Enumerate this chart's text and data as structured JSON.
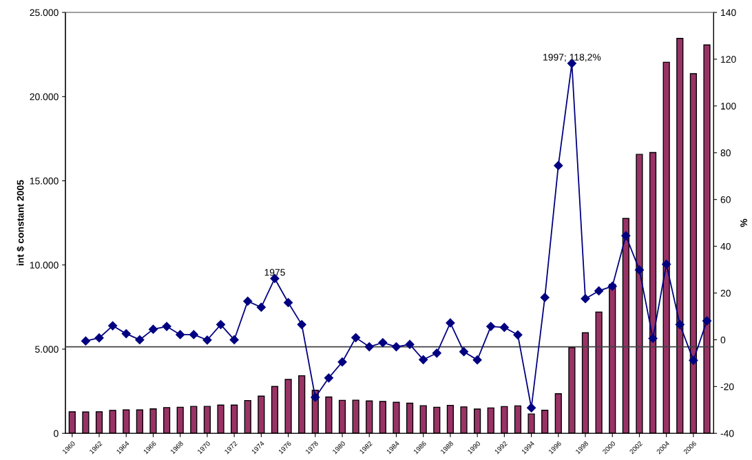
{
  "chart_data": {
    "type": "bar",
    "x": [
      1960,
      1961,
      1962,
      1963,
      1964,
      1965,
      1966,
      1967,
      1968,
      1969,
      1970,
      1971,
      1972,
      1973,
      1974,
      1975,
      1976,
      1977,
      1978,
      1979,
      1980,
      1981,
      1982,
      1983,
      1984,
      1985,
      1986,
      1987,
      1988,
      1989,
      1990,
      1991,
      1992,
      1993,
      1994,
      1995,
      1996,
      1997,
      1998,
      1999,
      2000,
      2001,
      2002,
      2003,
      2004,
      2005,
      2006,
      2007
    ],
    "xlim": [
      1959.5,
      2007.5
    ],
    "xticks": [
      1960,
      1962,
      1964,
      1966,
      1968,
      1970,
      1972,
      1974,
      1976,
      1978,
      1980,
      1982,
      1984,
      1986,
      1988,
      1990,
      1992,
      1994,
      1996,
      1998,
      2000,
      2002,
      2004,
      2006
    ],
    "series": [
      {
        "color": "#993366",
        "values": [
          1280,
          1270,
          1280,
          1360,
          1390,
          1390,
          1450,
          1530,
          1550,
          1600,
          1600,
          1680,
          1680,
          1950,
          2210,
          2780,
          3200,
          3420,
          2560,
          2160,
          1960,
          1970,
          1920,
          1890,
          1840,
          1790,
          1640,
          1550,
          1660,
          1570,
          1440,
          1510,
          1590,
          1630,
          1150,
          1370,
          2350,
          5090,
          5970,
          7200,
          8850,
          12760,
          16570,
          16680,
          22040,
          23460,
          21360,
          23070
        ]
      },
      {
        "type": "line",
        "axis": "y2",
        "color": "#000080",
        "marker": "diamond",
        "line_style": "solid",
        "values": [
          null,
          -0.5,
          0.8,
          6.0,
          2.6,
          0,
          4.5,
          5.7,
          2.2,
          2.2,
          -0.1,
          6.5,
          0,
          16.5,
          13.9,
          26.2,
          15.9,
          6.5,
          -24.6,
          -16.3,
          -9.5,
          0.9,
          -3.0,
          -1.2,
          -3.0,
          -2.0,
          -8.5,
          -5.7,
          7.2,
          -5.1,
          -8.6,
          5.7,
          5.3,
          2.1,
          -29.1,
          18.1,
          74.5,
          118.2,
          17.6,
          20.9,
          22.9,
          44.5,
          29.9,
          0.6,
          32.3,
          6.5,
          -8.8,
          8.1
        ]
      }
    ],
    "ylabel": "int $ constant 2005",
    "y2label": "%",
    "ylim": [
      0,
      25000
    ],
    "yticks": [
      {
        "value": 0,
        "label": "0"
      },
      {
        "value": 5000,
        "label": "5.000"
      },
      {
        "value": 10000,
        "label": "10.000"
      },
      {
        "value": 15000,
        "label": "15.000"
      },
      {
        "value": 20000,
        "label": "20.000"
      },
      {
        "value": 25000,
        "label": "25.000"
      }
    ],
    "y2lim": [
      -40,
      140
    ],
    "y2ticks": [
      -40,
      -20,
      0,
      20,
      40,
      60,
      80,
      100,
      120,
      140
    ],
    "ref_lines": [
      {
        "axis": "y2",
        "value": -3,
        "color": "#404040"
      }
    ],
    "annotations": [
      {
        "text": "1975",
        "x": 1975,
        "y": 9190
      },
      {
        "text": "1997; 118,2%",
        "x": 1997,
        "y": 21970
      }
    ],
    "grid": false,
    "legend": false
  }
}
